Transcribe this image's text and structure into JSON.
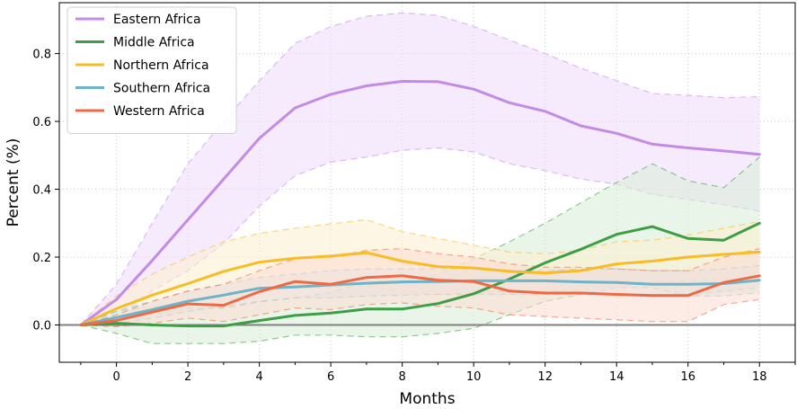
{
  "chart_data": {
    "type": "line",
    "xlabel": "Months",
    "ylabel": "Percent (%)",
    "xlim": [
      -1.6,
      19.0
    ],
    "ylim": [
      -0.11,
      0.95
    ],
    "xticks": [
      0,
      2,
      4,
      6,
      8,
      10,
      12,
      14,
      16,
      18
    ],
    "yticks": [
      0.0,
      0.2,
      0.4,
      0.6,
      0.8
    ],
    "xtick_labels": [
      "0",
      "2",
      "4",
      "6",
      "8",
      "10",
      "12",
      "14",
      "16",
      "18"
    ],
    "ytick_labels": [
      "0.0",
      "0.2",
      "0.4",
      "0.6",
      "0.8"
    ],
    "grid": true,
    "zero_line": 0,
    "legend_position": "top-left",
    "x": [
      -1,
      0,
      1,
      2,
      3,
      4,
      5,
      6,
      7,
      8,
      9,
      10,
      11,
      12,
      13,
      14,
      15,
      16,
      17,
      18
    ],
    "series": [
      {
        "name": "Eastern Africa",
        "color": "#c38ae6",
        "band_color": "#efdbfb",
        "values": [
          0.0,
          0.075,
          0.19,
          0.31,
          0.43,
          0.55,
          0.64,
          0.68,
          0.705,
          0.718,
          0.717,
          0.695,
          0.655,
          0.63,
          0.587,
          0.565,
          0.533,
          0.522,
          0.513,
          0.503
        ],
        "upper": [
          0.0,
          0.12,
          0.3,
          0.475,
          0.6,
          0.72,
          0.83,
          0.88,
          0.91,
          0.92,
          0.913,
          0.88,
          0.84,
          0.8,
          0.757,
          0.72,
          0.682,
          0.677,
          0.67,
          0.673
        ],
        "lower": [
          0.0,
          0.025,
          0.1,
          0.16,
          0.24,
          0.35,
          0.44,
          0.48,
          0.495,
          0.515,
          0.522,
          0.51,
          0.475,
          0.455,
          0.43,
          0.415,
          0.385,
          0.37,
          0.355,
          0.335
        ]
      },
      {
        "name": "Middle Africa",
        "color": "#3d9e45",
        "band_color": "#d9ecd7",
        "values": [
          0.0,
          0.005,
          0.0,
          -0.003,
          -0.003,
          0.013,
          0.028,
          0.035,
          0.047,
          0.047,
          0.063,
          0.092,
          0.135,
          0.183,
          0.223,
          0.267,
          0.29,
          0.255,
          0.25,
          0.3
        ],
        "upper": [
          0.0,
          0.04,
          0.055,
          0.05,
          0.05,
          0.068,
          0.08,
          0.095,
          0.13,
          0.13,
          0.15,
          0.195,
          0.245,
          0.3,
          0.36,
          0.42,
          0.475,
          0.425,
          0.405,
          0.495
        ],
        "lower": [
          0.0,
          -0.025,
          -0.055,
          -0.055,
          -0.055,
          -0.048,
          -0.03,
          -0.03,
          -0.035,
          -0.035,
          -0.025,
          -0.01,
          0.03,
          0.07,
          0.09,
          0.11,
          0.11,
          0.085,
          0.1,
          0.11
        ]
      },
      {
        "name": "Northern Africa",
        "color": "#f8bc26",
        "band_color": "#fdefcf",
        "values": [
          0.0,
          0.048,
          0.088,
          0.122,
          0.158,
          0.185,
          0.197,
          0.203,
          0.213,
          0.188,
          0.172,
          0.168,
          0.158,
          0.153,
          0.16,
          0.18,
          0.188,
          0.2,
          0.208,
          0.215
        ],
        "upper": [
          0.0,
          0.085,
          0.15,
          0.2,
          0.245,
          0.27,
          0.285,
          0.298,
          0.31,
          0.275,
          0.255,
          0.235,
          0.215,
          0.21,
          0.22,
          0.245,
          0.25,
          0.265,
          0.285,
          0.305
        ],
        "lower": [
          0.0,
          0.012,
          0.03,
          0.05,
          0.07,
          0.1,
          0.11,
          0.11,
          0.115,
          0.1,
          0.09,
          0.095,
          0.1,
          0.1,
          0.105,
          0.115,
          0.12,
          0.13,
          0.135,
          0.13
        ]
      },
      {
        "name": "Southern Africa",
        "color": "#6fb3c9",
        "band_color": "#d5ebf1",
        "values": [
          0.0,
          0.022,
          0.045,
          0.07,
          0.088,
          0.108,
          0.112,
          0.118,
          0.123,
          0.127,
          0.128,
          0.13,
          0.13,
          0.13,
          0.127,
          0.125,
          0.12,
          0.12,
          0.122,
          0.132
        ],
        "upper": [
          0.0,
          0.04,
          0.07,
          0.1,
          0.12,
          0.14,
          0.15,
          0.16,
          0.165,
          0.165,
          0.165,
          0.165,
          0.16,
          0.16,
          0.165,
          0.165,
          0.16,
          0.16,
          0.165,
          0.175
        ],
        "lower": [
          0.0,
          0.005,
          0.02,
          0.04,
          0.055,
          0.07,
          0.08,
          0.08,
          0.085,
          0.088,
          0.09,
          0.09,
          0.09,
          0.09,
          0.09,
          0.088,
          0.085,
          0.085,
          0.085,
          0.095
        ]
      },
      {
        "name": "Western Africa",
        "color": "#ee6a45",
        "band_color": "#fbdacf",
        "values": [
          0.0,
          0.013,
          0.038,
          0.062,
          0.058,
          0.098,
          0.128,
          0.12,
          0.14,
          0.145,
          0.132,
          0.128,
          0.1,
          0.094,
          0.094,
          0.09,
          0.087,
          0.087,
          0.125,
          0.145
        ],
        "upper": [
          0.0,
          0.03,
          0.07,
          0.1,
          0.12,
          0.16,
          0.195,
          0.2,
          0.22,
          0.225,
          0.21,
          0.2,
          0.18,
          0.17,
          0.17,
          0.165,
          0.16,
          0.16,
          0.2,
          0.225
        ],
        "lower": [
          0.0,
          -0.005,
          0.005,
          0.02,
          0.01,
          0.03,
          0.05,
          0.045,
          0.06,
          0.065,
          0.055,
          0.05,
          0.03,
          0.025,
          0.02,
          0.015,
          0.01,
          0.01,
          0.06,
          0.075
        ]
      }
    ]
  }
}
